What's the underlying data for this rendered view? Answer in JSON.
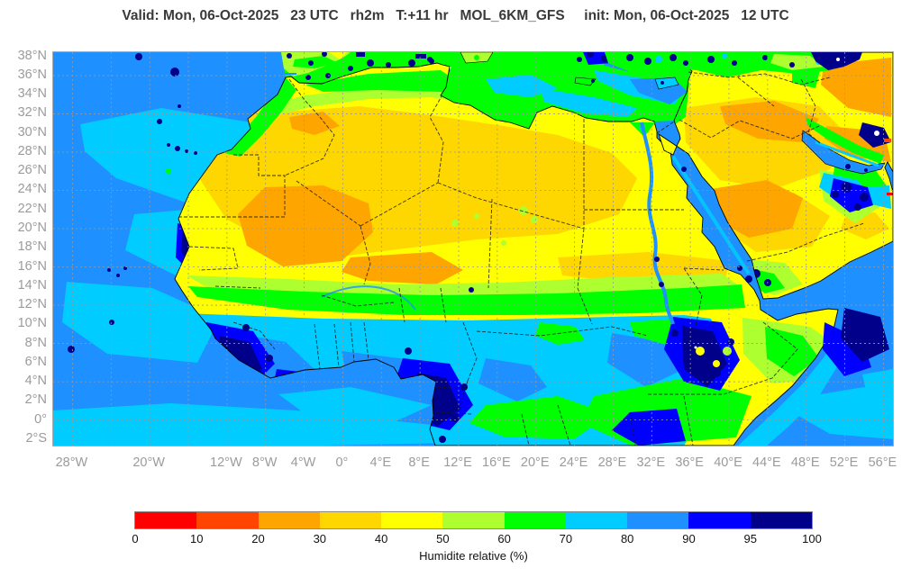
{
  "title": "Valid: Mon, 06-Oct-2025   23 UTC   rh2m   T:+11 hr   MOL_6KM_GFS     init: Mon, 06-Oct-2025   12 UTC",
  "map": {
    "lat_ticks": [
      {
        "label": "38°N",
        "lat": 38
      },
      {
        "label": "36°N",
        "lat": 36
      },
      {
        "label": "34°N",
        "lat": 34
      },
      {
        "label": "32°N",
        "lat": 32
      },
      {
        "label": "30°N",
        "lat": 30
      },
      {
        "label": "28°N",
        "lat": 28
      },
      {
        "label": "26°N",
        "lat": 26
      },
      {
        "label": "24°N",
        "lat": 24
      },
      {
        "label": "22°N",
        "lat": 22
      },
      {
        "label": "20°N",
        "lat": 20
      },
      {
        "label": "18°N",
        "lat": 18
      },
      {
        "label": "16°N",
        "lat": 16
      },
      {
        "label": "14°N",
        "lat": 14
      },
      {
        "label": "12°N",
        "lat": 12
      },
      {
        "label": "10°N",
        "lat": 10
      },
      {
        "label": "8°N",
        "lat": 8
      },
      {
        "label": "6°N",
        "lat": 6
      },
      {
        "label": "4°N",
        "lat": 4
      },
      {
        "label": "2°N",
        "lat": 2
      },
      {
        "label": "0°",
        "lat": 0
      },
      {
        "label": "2°S",
        "lat": -2
      }
    ],
    "lon_ticks": [
      {
        "label": "28°W",
        "lon": -28
      },
      {
        "label": "20°W",
        "lon": -20
      },
      {
        "label": "12°W",
        "lon": -12
      },
      {
        "label": "8°W",
        "lon": -8
      },
      {
        "label": "4°W",
        "lon": -4
      },
      {
        "label": "0°",
        "lon": 0
      },
      {
        "label": "4°E",
        "lon": 4
      },
      {
        "label": "8°E",
        "lon": 8
      },
      {
        "label": "12°E",
        "lon": 12
      },
      {
        "label": "16°E",
        "lon": 16
      },
      {
        "label": "20°E",
        "lon": 20
      },
      {
        "label": "24°E",
        "lon": 24
      },
      {
        "label": "28°E",
        "lon": 28
      },
      {
        "label": "32°E",
        "lon": 32
      },
      {
        "label": "36°E",
        "lon": 36
      },
      {
        "label": "40°E",
        "lon": 40
      },
      {
        "label": "44°E",
        "lon": 44
      },
      {
        "label": "48°E",
        "lon": 48
      },
      {
        "label": "52°E",
        "lon": 52
      },
      {
        "label": "56°E",
        "lon": 56
      }
    ]
  },
  "colorbar": {
    "caption": "Humidite relative (%)",
    "ticks": [
      "0",
      "10",
      "20",
      "30",
      "40",
      "50",
      "60",
      "70",
      "80",
      "90",
      "95",
      "100"
    ],
    "segments": [
      {
        "range": "0-10",
        "color": "#ff0000"
      },
      {
        "range": "10-20",
        "color": "#ff4500"
      },
      {
        "range": "20-30",
        "color": "#ffa500"
      },
      {
        "range": "30-40",
        "color": "#ffd700"
      },
      {
        "range": "40-50",
        "color": "#ffff00"
      },
      {
        "range": "50-60",
        "color": "#adff2f"
      },
      {
        "range": "60-70",
        "color": "#00ff00"
      },
      {
        "range": "70-80",
        "color": "#00ccff"
      },
      {
        "range": "80-90",
        "color": "#1e90ff"
      },
      {
        "range": "90-95",
        "color": "#0000ff"
      },
      {
        "range": "95-100",
        "color": "#00008b"
      }
    ]
  }
}
